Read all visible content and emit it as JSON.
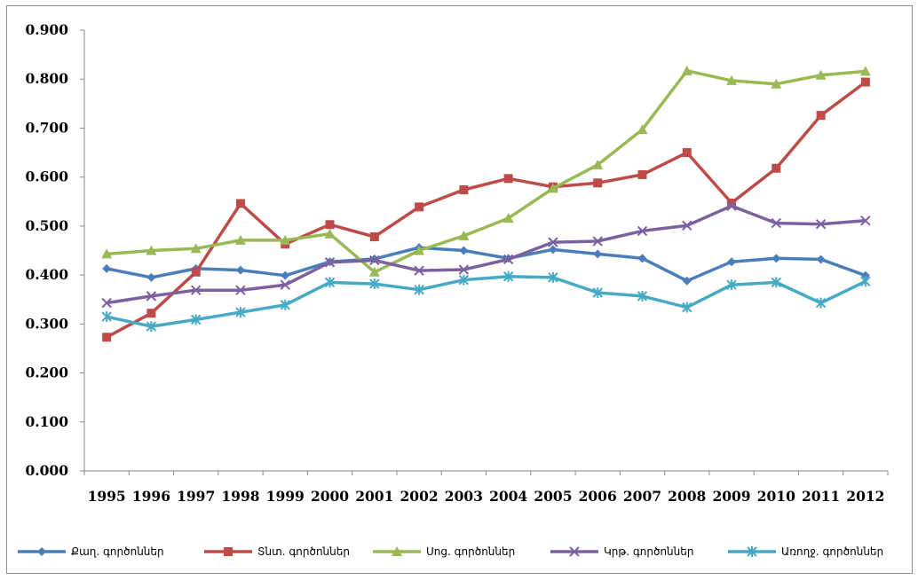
{
  "chart_data": {
    "type": "line",
    "title": "",
    "xlabel": "",
    "ylabel": "",
    "ylim": [
      0,
      0.9
    ],
    "y_ticks": [
      "0.000",
      "0.100",
      "0.200",
      "0.300",
      "0.400",
      "0.500",
      "0.600",
      "0.700",
      "0.800",
      "0.900"
    ],
    "grid": false,
    "legend_position": "bottom",
    "categories": [
      "1995",
      "1996",
      "1997",
      "1998",
      "1999",
      "2000",
      "2001",
      "2002",
      "2003",
      "2004",
      "2005",
      "2006",
      "2007",
      "2008",
      "2009",
      "2010",
      "2011",
      "2012"
    ],
    "series": [
      {
        "name": "Քաղ. գործոններ",
        "color": "#4a7ebb",
        "marker": "diamond",
        "values": [
          0.413,
          0.395,
          0.413,
          0.41,
          0.399,
          0.427,
          0.433,
          0.456,
          0.45,
          0.434,
          0.452,
          0.443,
          0.434,
          0.388,
          0.427,
          0.434,
          0.432,
          0.399
        ]
      },
      {
        "name": "Տնտ. գործոններ",
        "color": "#be4b48",
        "marker": "square",
        "values": [
          0.273,
          0.322,
          0.406,
          0.546,
          0.463,
          0.503,
          0.478,
          0.539,
          0.574,
          0.597,
          0.58,
          0.588,
          0.605,
          0.65,
          0.547,
          0.618,
          0.726,
          0.794
        ]
      },
      {
        "name": "Սոց. գործոններ",
        "color": "#98b954",
        "marker": "triangle",
        "values": [
          0.443,
          0.45,
          0.454,
          0.471,
          0.471,
          0.484,
          0.406,
          0.45,
          0.48,
          0.516,
          0.577,
          0.625,
          0.697,
          0.817,
          0.797,
          0.79,
          0.808,
          0.816
        ]
      },
      {
        "name": "Կրթ. գործոններ",
        "color": "#7d60a0",
        "marker": "x",
        "values": [
          0.343,
          0.357,
          0.369,
          0.369,
          0.38,
          0.426,
          0.43,
          0.409,
          0.411,
          0.432,
          0.467,
          0.469,
          0.49,
          0.501,
          0.541,
          0.506,
          0.504,
          0.511
        ]
      },
      {
        "name": "Առողջ. գործոններ",
        "color": "#46aac5",
        "marker": "asterisk",
        "values": [
          0.315,
          0.295,
          0.309,
          0.324,
          0.339,
          0.385,
          0.382,
          0.37,
          0.39,
          0.397,
          0.395,
          0.364,
          0.357,
          0.334,
          0.38,
          0.385,
          0.343,
          0.387
        ]
      }
    ]
  }
}
